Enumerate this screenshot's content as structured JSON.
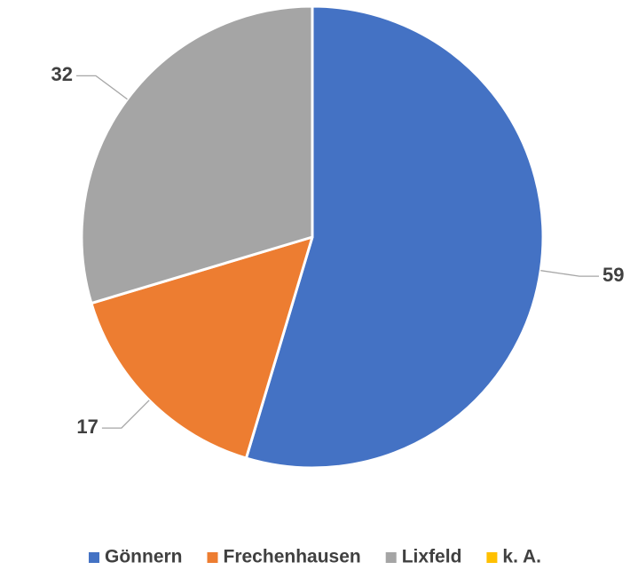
{
  "chart_data": {
    "type": "pie",
    "categories": [
      "Gönnern",
      "Frechenhausen",
      "Lixfeld",
      "k. A."
    ],
    "values": [
      59,
      17,
      32,
      0
    ],
    "colors": [
      "#4472c4",
      "#ed7d31",
      "#a5a5a5",
      "#ffc000"
    ],
    "legend": "bottom"
  }
}
